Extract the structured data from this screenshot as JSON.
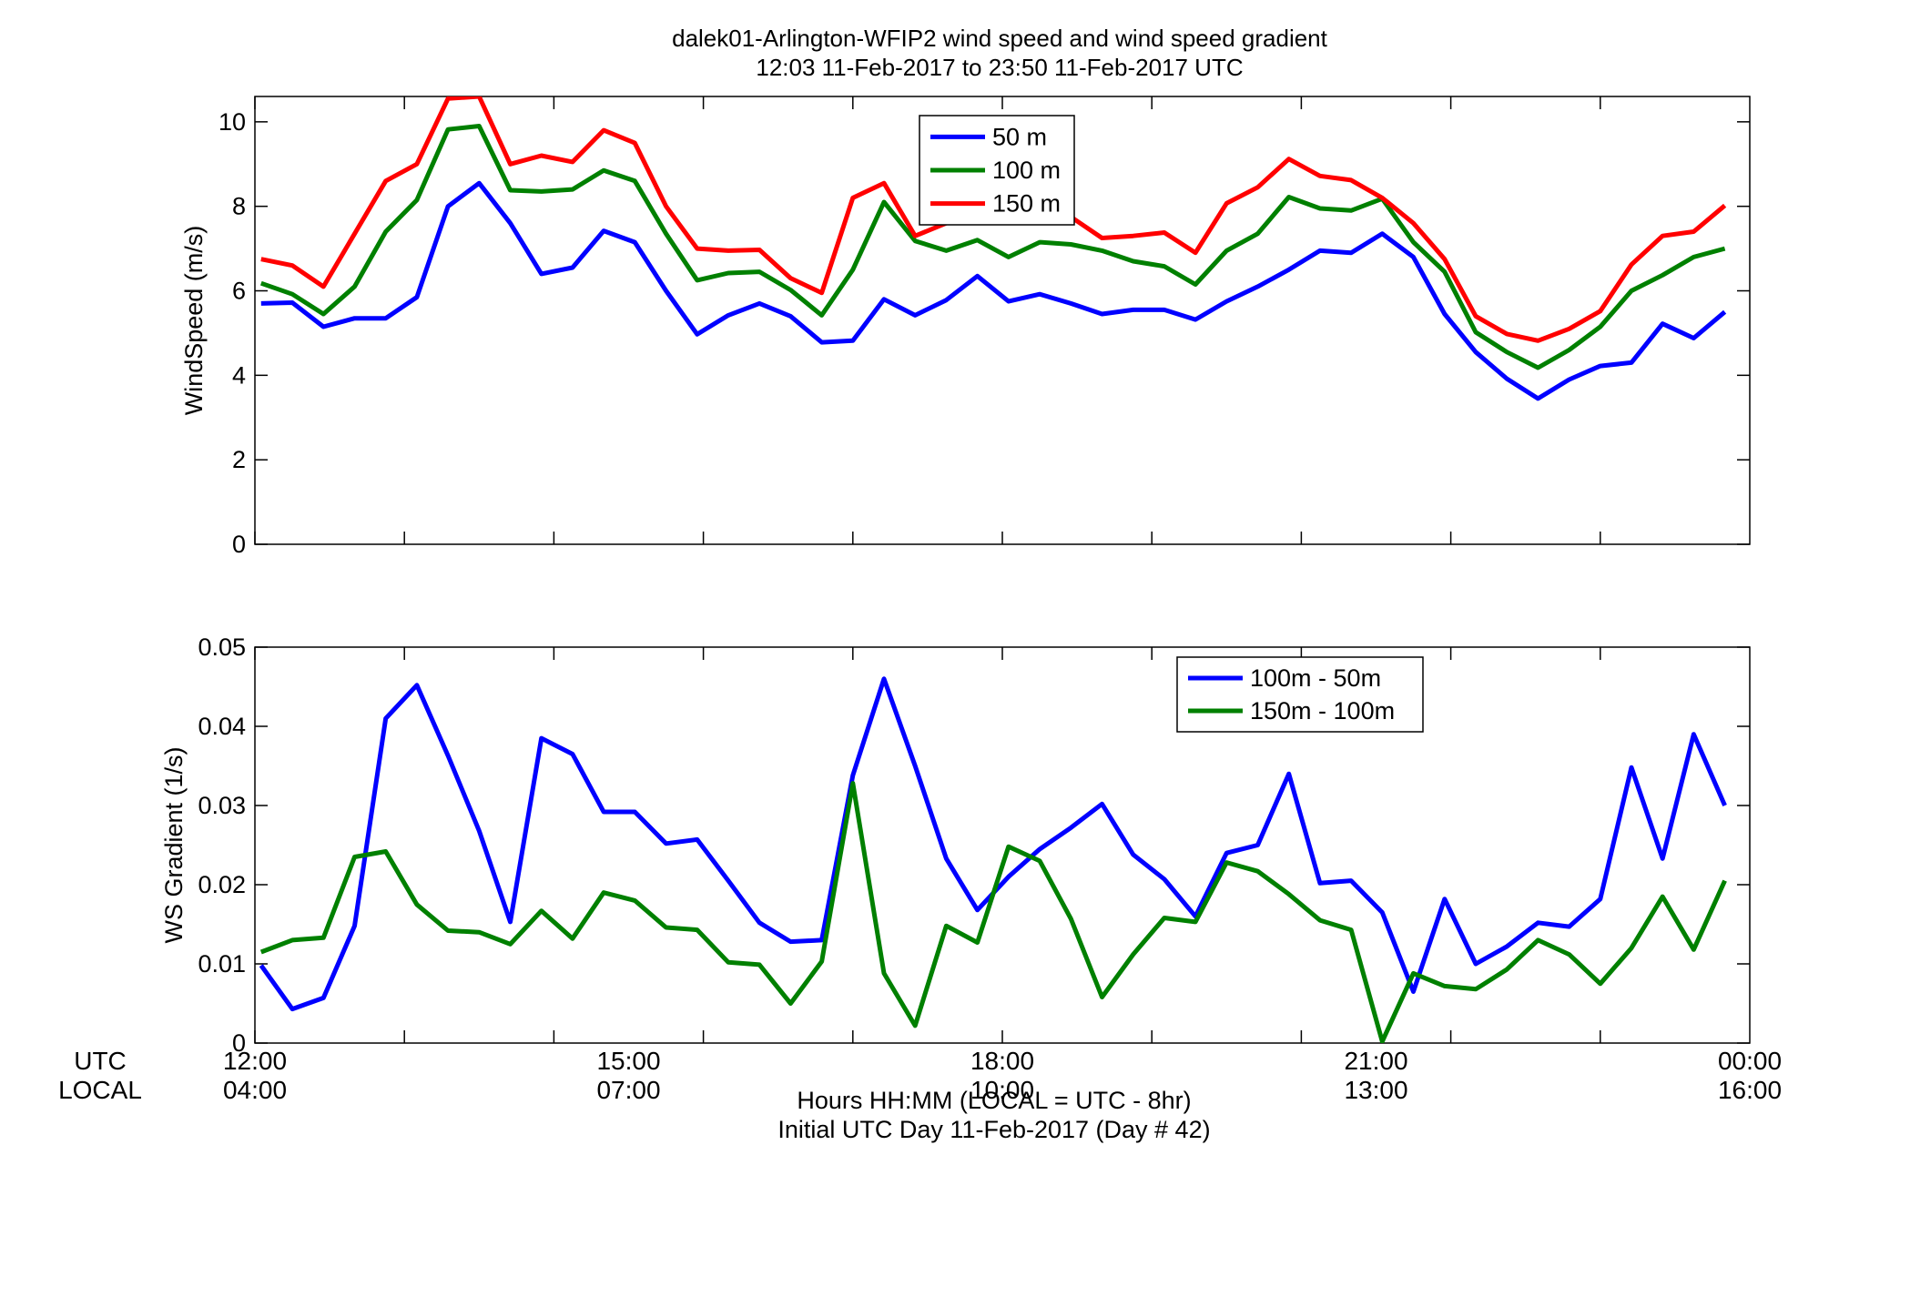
{
  "figure": {
    "title_line1": "dalek01-Arlington-WFIP2  wind speed and wind speed gradient",
    "title_line2": "12:03 11-Feb-2017 to 23:50 11-Feb-2017  UTC",
    "utc_row_label": "UTC",
    "local_row_label": "LOCAL",
    "xlabel_line1": "Hours HH:MM  (LOCAL = UTC - 8hr)",
    "xlabel_line2": "Initial UTC Day 11-Feb-2017 (Day # 42)",
    "x_ticks": [
      {
        "hour": 12,
        "utc": "12:00",
        "local": "04:00"
      },
      {
        "hour": 15,
        "utc": "15:00",
        "local": "07:00"
      },
      {
        "hour": 18,
        "utc": "18:00",
        "local": "10:00"
      },
      {
        "hour": 21,
        "utc": "21:00",
        "local": "13:00"
      },
      {
        "hour": 24,
        "utc": "00:00",
        "local": "16:00"
      }
    ],
    "x_minor_ticks": [
      12,
      13.2,
      14.4,
      15.6,
      16.8,
      18,
      19.2,
      20.4,
      21.6,
      22.8
    ]
  },
  "chart_data": [
    {
      "type": "line",
      "title": "",
      "xlabel": "Hours HH:MM",
      "ylabel": "WindSpeed (m/s)",
      "xlim": [
        12,
        24
      ],
      "ylim": [
        0,
        10.6
      ],
      "y_ticks": [
        0,
        2,
        4,
        6,
        8,
        10
      ],
      "grid": false,
      "legend_position": "top-center",
      "x": [
        12.05,
        12.3,
        12.55,
        12.8,
        13.05,
        13.3,
        13.55,
        13.8,
        14.05,
        14.3,
        14.55,
        14.8,
        15.05,
        15.3,
        15.55,
        15.8,
        16.05,
        16.3,
        16.55,
        16.8,
        17.05,
        17.3,
        17.55,
        17.8,
        18.05,
        18.3,
        18.55,
        18.8,
        19.05,
        19.3,
        19.55,
        19.8,
        20.05,
        20.3,
        20.55,
        20.8,
        21.05,
        21.3,
        21.55,
        21.8,
        22.05,
        22.3,
        22.55,
        22.8,
        23.05,
        23.3,
        23.55,
        23.8
      ],
      "series": [
        {
          "name": "50 m",
          "color": "#0000ff",
          "values": [
            5.7,
            5.72,
            5.15,
            5.35,
            5.35,
            5.85,
            8.0,
            8.55,
            7.6,
            6.4,
            6.55,
            7.42,
            7.15,
            6.0,
            4.97,
            5.42,
            5.7,
            5.4,
            4.78,
            4.82,
            5.8,
            5.42,
            5.78,
            6.35,
            5.75,
            5.92,
            5.7,
            5.45,
            5.55,
            5.55,
            5.32,
            5.75,
            6.1,
            6.5,
            6.95,
            6.9,
            7.35,
            6.8,
            5.45,
            4.55,
            3.92,
            3.45,
            3.9,
            4.22,
            4.3,
            5.22,
            4.88,
            5.5
          ]
        },
        {
          "name": "100 m",
          "color": "#008000",
          "values": [
            6.18,
            5.92,
            5.45,
            6.1,
            7.4,
            8.15,
            9.82,
            9.9,
            8.38,
            8.35,
            8.4,
            8.85,
            8.6,
            7.35,
            6.25,
            6.42,
            6.45,
            6.02,
            5.42,
            6.5,
            8.1,
            7.18,
            6.95,
            7.2,
            6.8,
            7.15,
            7.1,
            6.95,
            6.7,
            6.58,
            6.15,
            6.95,
            7.35,
            8.22,
            7.95,
            7.9,
            8.18,
            7.15,
            6.45,
            5.02,
            4.55,
            4.18,
            4.6,
            5.15,
            6.0,
            6.37,
            6.8,
            7.0
          ]
        },
        {
          "name": "150 m",
          "color": "#ff0000",
          "values": [
            6.75,
            6.6,
            6.1,
            7.35,
            8.6,
            9.0,
            10.55,
            10.6,
            9.0,
            9.2,
            9.05,
            9.8,
            9.5,
            8.0,
            7.0,
            6.95,
            6.97,
            6.3,
            5.95,
            8.2,
            8.55,
            7.3,
            7.6,
            8.05,
            7.9,
            7.7,
            7.75,
            7.25,
            7.3,
            7.38,
            6.9,
            8.07,
            8.45,
            9.12,
            8.72,
            8.62,
            8.2,
            7.6,
            6.75,
            5.4,
            4.98,
            4.82,
            5.1,
            5.52,
            6.62,
            7.3,
            7.4,
            8.02
          ]
        }
      ]
    },
    {
      "type": "line",
      "title": "",
      "xlabel": "Hours HH:MM",
      "ylabel": "WS Gradient (1/s)",
      "xlim": [
        12,
        24
      ],
      "ylim": [
        0,
        0.05
      ],
      "y_ticks": [
        0,
        0.01,
        0.02,
        0.03,
        0.04,
        0.05
      ],
      "y_tick_labels": [
        "0",
        "0.01",
        "0.02",
        "0.03",
        "0.04",
        "0.05"
      ],
      "grid": false,
      "legend_position": "top-right",
      "x": [
        12.05,
        12.3,
        12.55,
        12.8,
        13.05,
        13.3,
        13.55,
        13.8,
        14.05,
        14.3,
        14.55,
        14.8,
        15.05,
        15.3,
        15.55,
        15.8,
        16.05,
        16.3,
        16.55,
        16.8,
        17.05,
        17.3,
        17.55,
        17.8,
        18.05,
        18.3,
        18.55,
        18.8,
        19.05,
        19.3,
        19.55,
        19.8,
        20.05,
        20.3,
        20.55,
        20.8,
        21.05,
        21.3,
        21.55,
        21.8,
        22.05,
        22.3,
        22.55,
        22.8,
        23.05,
        23.3,
        23.55,
        23.8
      ],
      "series": [
        {
          "name": "100m - 50m",
          "color": "#0000ff",
          "values": [
            0.0098,
            0.0043,
            0.0057,
            0.0148,
            0.041,
            0.0452,
            0.0363,
            0.0268,
            0.0153,
            0.0385,
            0.0365,
            0.0292,
            0.0292,
            0.0252,
            0.0257,
            0.0205,
            0.0152,
            0.0128,
            0.013,
            0.0338,
            0.046,
            0.035,
            0.0233,
            0.0168,
            0.021,
            0.0245,
            0.0272,
            0.0302,
            0.0238,
            0.0207,
            0.016,
            0.024,
            0.025,
            0.034,
            0.0202,
            0.0205,
            0.0165,
            0.0065,
            0.0182,
            0.01,
            0.0122,
            0.0152,
            0.0147,
            0.0182,
            0.0348,
            0.0233,
            0.039,
            0.03
          ]
        },
        {
          "name": "150m - 100m",
          "color": "#008000",
          "values": [
            0.0115,
            0.013,
            0.0133,
            0.0235,
            0.0242,
            0.0175,
            0.0142,
            0.014,
            0.0125,
            0.0167,
            0.0132,
            0.019,
            0.018,
            0.0146,
            0.0143,
            0.0102,
            0.0099,
            0.005,
            0.0103,
            0.0328,
            0.0088,
            0.0022,
            0.0148,
            0.0127,
            0.0248,
            0.023,
            0.0157,
            0.0058,
            0.0112,
            0.0158,
            0.0153,
            0.0228,
            0.0217,
            0.0188,
            0.0155,
            0.0143,
            0.0002,
            0.0088,
            0.0072,
            0.0068,
            0.0093,
            0.013,
            0.0112,
            0.0075,
            0.012,
            0.0185,
            0.0118,
            0.0205
          ]
        }
      ]
    }
  ]
}
